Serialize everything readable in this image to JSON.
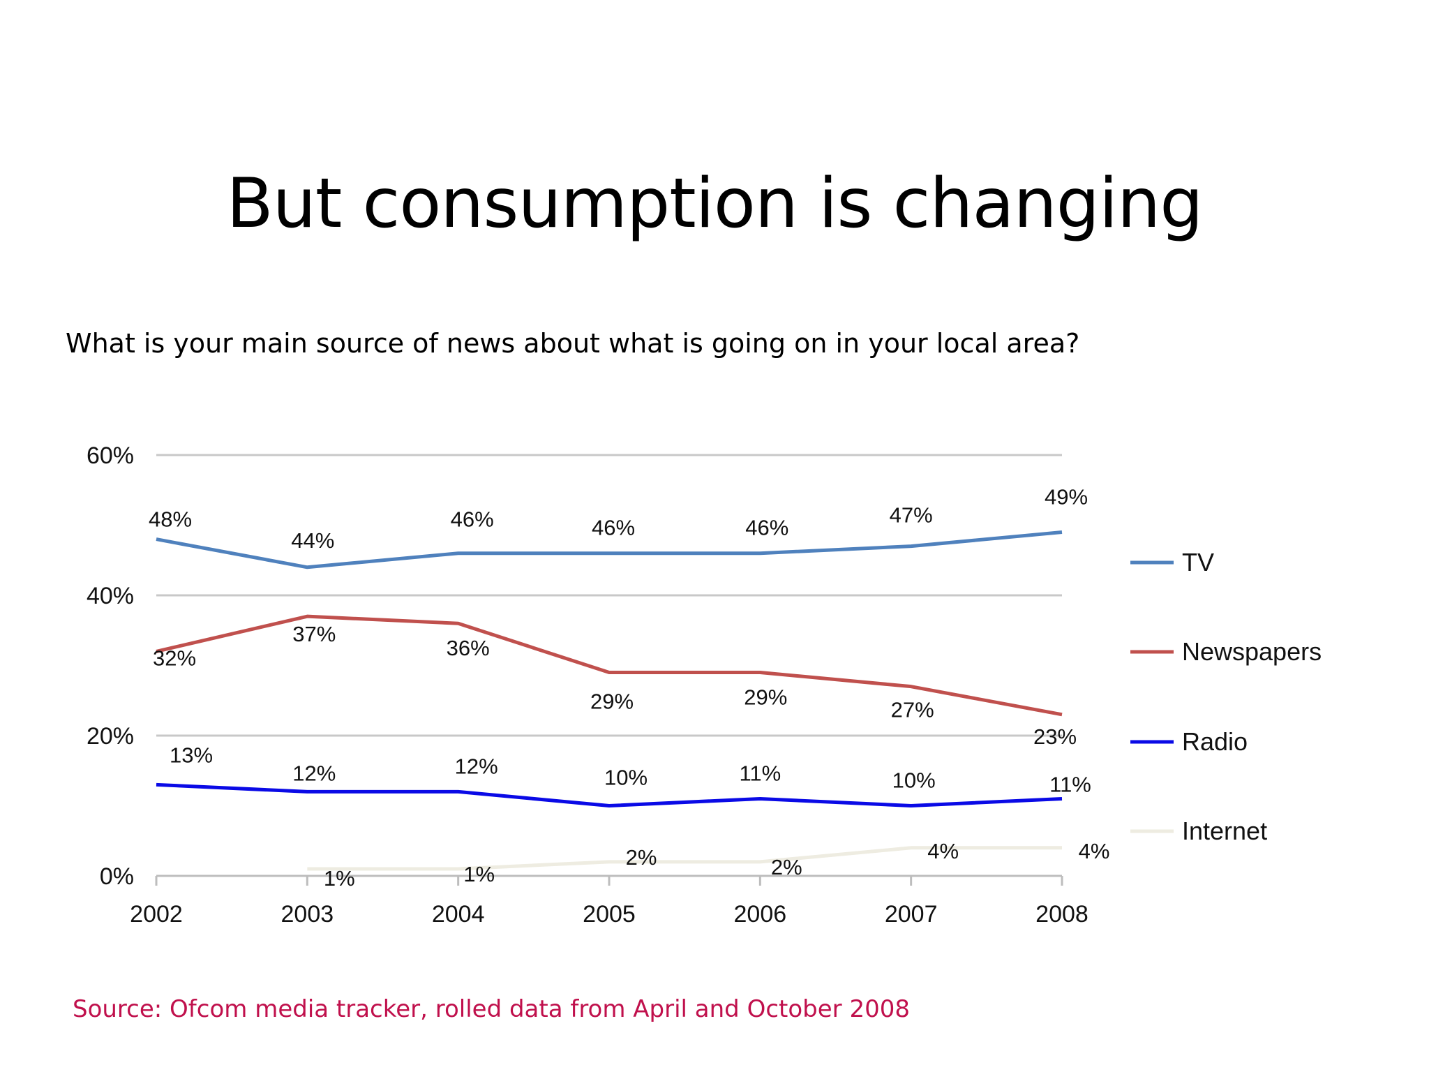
{
  "slide": {
    "title": "But consumption is changing",
    "subtitle": "What is your main source of news about what is going on in your local area?",
    "source": "Source: Ofcom media tracker, rolled data from April and October 2008"
  },
  "chart_data": {
    "type": "line",
    "categories": [
      "2002",
      "2003",
      "2004",
      "2005",
      "2006",
      "2007",
      "2008"
    ],
    "ylim": [
      0,
      60
    ],
    "y_ticks": [
      0,
      20,
      40,
      60
    ],
    "y_tick_labels": [
      "0%",
      "20%",
      "40%",
      "60%"
    ],
    "grid": true,
    "legend_position": "right",
    "series": [
      {
        "name": "TV",
        "color": "#4f81bd",
        "values": [
          48,
          44,
          46,
          46,
          46,
          47,
          49
        ],
        "labels": [
          "48%",
          "44%",
          "46%",
          "46%",
          "46%",
          "47%",
          "49%"
        ]
      },
      {
        "name": "Newspapers",
        "color": "#c0504d",
        "values": [
          32,
          37,
          36,
          29,
          29,
          27,
          23
        ],
        "labels": [
          "32%",
          "37%",
          "36%",
          "29%",
          "29%",
          "27%",
          "23%"
        ]
      },
      {
        "name": "Radio",
        "color": "#0a0ae6",
        "values": [
          13,
          12,
          12,
          10,
          11,
          10,
          11
        ],
        "labels": [
          "13%",
          "12%",
          "12%",
          "10%",
          "11%",
          "10%",
          "11%"
        ]
      },
      {
        "name": "Internet",
        "color": "#eeece1",
        "values": [
          null,
          1,
          1,
          2,
          2,
          4,
          4
        ],
        "labels": [
          null,
          "1%",
          "1%",
          "2%",
          "2%",
          "4%",
          "4%"
        ]
      }
    ]
  }
}
